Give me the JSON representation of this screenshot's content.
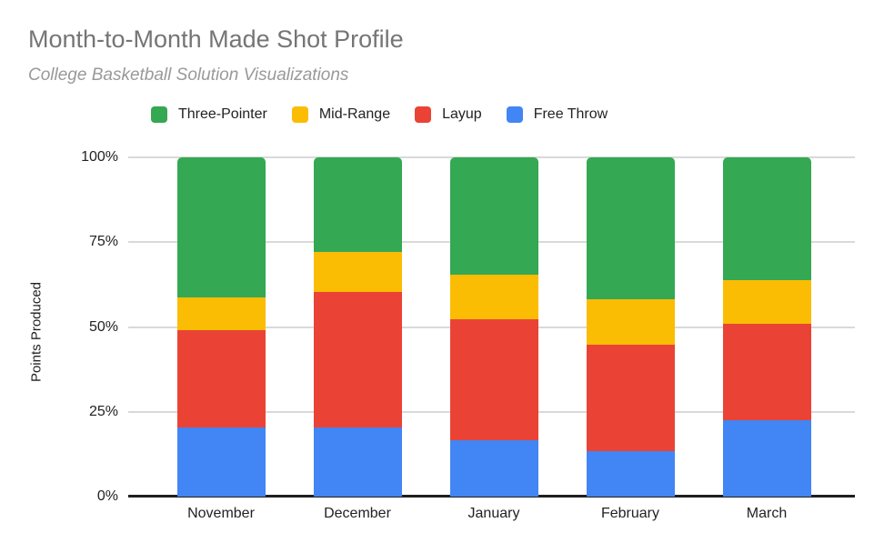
{
  "chart_data": {
    "type": "bar",
    "variant": "stacked-100-percent-column",
    "title": "Month-to-Month Made Shot Profile",
    "subtitle": "College Basketball Solution Visualizations",
    "xlabel": "",
    "ylabel": "Points Produced",
    "categories": [
      "November",
      "December",
      "January",
      "February",
      "March"
    ],
    "series": [
      {
        "name": "Free Throw",
        "color": "#4285F4",
        "values": [
          20.5,
          20.3,
          16.5,
          13.3,
          22.5
        ]
      },
      {
        "name": "Layup",
        "color": "#EA4335",
        "values": [
          28.5,
          40.1,
          35.8,
          31.6,
          28.5
        ]
      },
      {
        "name": "Mid-Range",
        "color": "#FBBC04",
        "values": [
          9.8,
          11.6,
          13.1,
          13.2,
          12.9
        ]
      },
      {
        "name": "Three-Pointer",
        "color": "#34A853",
        "values": [
          41.2,
          28.0,
          34.6,
          41.9,
          36.1
        ]
      }
    ],
    "stack_order": "bottom-to-top",
    "legend_order": [
      "Three-Pointer",
      "Mid-Range",
      "Layup",
      "Free Throw"
    ],
    "legend_position": "top",
    "y_ticks": [
      "100%",
      "75%",
      "50%",
      "25%",
      "0%"
    ],
    "ylim": [
      0,
      100
    ],
    "grid": true,
    "units": "percent"
  }
}
